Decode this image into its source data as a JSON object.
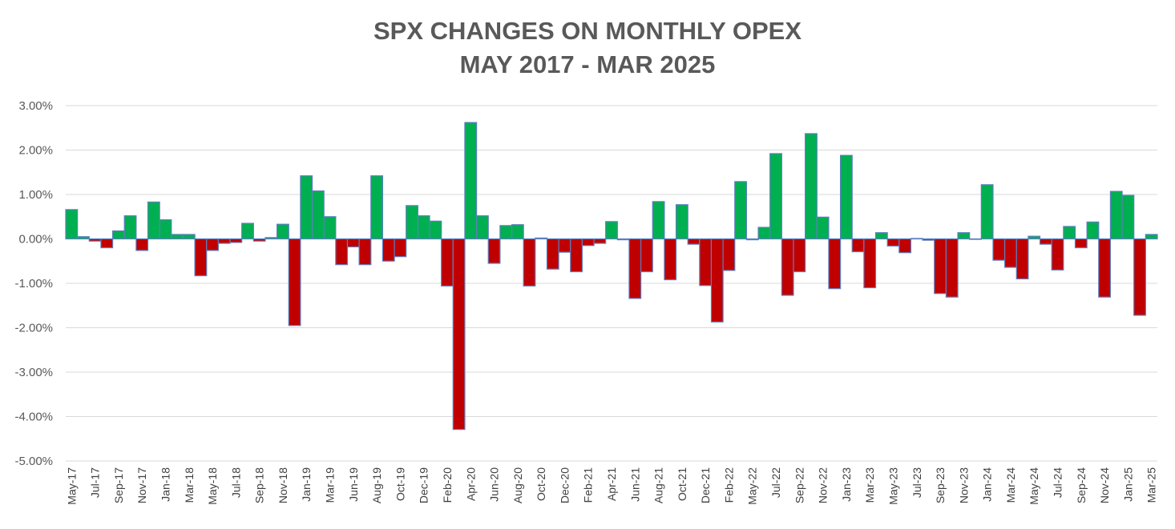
{
  "chart_data": {
    "type": "bar",
    "title_lines": [
      "SPX CHANGES ON MONTHLY OPEX",
      "MAY 2017 - MAR 2025"
    ],
    "xlabel": "",
    "ylabel": "",
    "ylim": [
      -5,
      3
    ],
    "y_ticks": [
      3,
      2,
      1,
      0,
      -1,
      -2,
      -3,
      -4,
      -5
    ],
    "y_tick_labels": [
      "3.00%",
      "2.00%",
      "1.00%",
      "0.00%",
      "-1.00%",
      "-2.00%",
      "-3.00%",
      "-4.00%",
      "-5.00%"
    ],
    "grid": true,
    "legend": "none",
    "colors": {
      "positive": "#00B050",
      "negative": "#C00000",
      "bar_border": "#5B7FBF",
      "grid": "#D9D9D9",
      "axis_text": "#595959",
      "title": "#595959"
    },
    "categories": [
      "May-17",
      "Jun-17",
      "Jul-17",
      "Aug-17",
      "Sep-17",
      "Oct-17",
      "Nov-17",
      "Dec-17",
      "Jan-18",
      "Feb-18",
      "Mar-18",
      "Apr-18",
      "May-18",
      "Jun-18",
      "Jul-18",
      "Aug-18",
      "Sep-18",
      "Oct-18",
      "Nov-18",
      "Dec-18",
      "Jan-19",
      "Feb-19",
      "Mar-19",
      "Apr-19",
      "Jun-19",
      "Jul-19",
      "Aug-19",
      "Sep-19",
      "Oct-19",
      "Nov-19",
      "Dec-19",
      "Jan-20",
      "Feb-20",
      "Mar-20",
      "Apr-20",
      "May-20",
      "Jun-20",
      "Jul-20",
      "Aug-20",
      "Sep-20",
      "Oct-20",
      "Nov-20",
      "Dec-20",
      "Jan-21",
      "Feb-21",
      "Mar-21",
      "Apr-21",
      "May-21",
      "Jun-21",
      "Jul-21",
      "Aug-21",
      "Sep-21",
      "Oct-21",
      "Nov-21",
      "Dec-21",
      "Jan-22",
      "Feb-22",
      "Mar-22",
      "May-22",
      "Jun-22",
      "Jul-22",
      "Aug-22",
      "Sep-22",
      "Oct-22",
      "Nov-22",
      "Dec-22",
      "Jan-23",
      "Feb-23",
      "Mar-23",
      "Apr-23",
      "May-23",
      "Jun-23",
      "Jul-23",
      "Aug-23",
      "Sep-23",
      "Oct-23",
      "Nov-23",
      "Dec-23",
      "Jan-24",
      "Feb-24",
      "Mar-24",
      "Apr-24",
      "May-24",
      "Jun-24",
      "Jul-24",
      "Aug-24",
      "Sep-24",
      "Oct-24",
      "Nov-24",
      "Dec-24",
      "Jan-25",
      "Feb-25",
      "Mar-25"
    ],
    "tick_labels": [
      "May-17",
      "Jul-17",
      "Sep-17",
      "Nov-17",
      "Jan-18",
      "Mar-18",
      "May-18",
      "Jul-18",
      "Sep-18",
      "Nov-18",
      "Jan-19",
      "Mar-19",
      "Jun-19",
      "Aug-19",
      "Oct-19",
      "Dec-19",
      "Feb-20",
      "Apr-20",
      "Jun-20",
      "Aug-20",
      "Oct-20",
      "Dec-20",
      "Feb-21",
      "Apr-21",
      "Jun-21",
      "Aug-21",
      "Oct-21",
      "Dec-21",
      "Feb-22",
      "May-22",
      "Jul-22",
      "Sep-22",
      "Nov-22",
      "Jan-23",
      "Mar-23",
      "May-23",
      "Jul-23",
      "Sep-23",
      "Nov-23",
      "Jan-24",
      "Mar-24",
      "May-24",
      "Jul-24",
      "Sep-24",
      "Nov-24",
      "Jan-25",
      "Mar-25"
    ],
    "values": [
      0.66,
      0.05,
      -0.05,
      -0.2,
      0.18,
      0.52,
      -0.26,
      0.83,
      0.43,
      0.1,
      0.1,
      -0.83,
      -0.26,
      -0.1,
      -0.08,
      0.35,
      -0.05,
      0.03,
      0.33,
      -1.95,
      1.42,
      1.08,
      0.5,
      -0.58,
      -0.18,
      -0.58,
      1.42,
      -0.5,
      -0.4,
      0.75,
      0.52,
      0.4,
      -1.06,
      -4.29,
      2.62,
      0.52,
      -0.55,
      0.3,
      0.32,
      -1.06,
      0.02,
      -0.68,
      -0.3,
      -0.74,
      -0.15,
      -0.1,
      0.39,
      -0.02,
      -1.34,
      -0.74,
      0.84,
      -0.92,
      0.77,
      -0.12,
      -1.05,
      -1.87,
      -0.71,
      1.29,
      -0.02,
      0.26,
      1.92,
      -1.27,
      -0.74,
      2.37,
      0.49,
      -1.12,
      1.88,
      -0.29,
      -1.1,
      0.14,
      -0.16,
      -0.31,
      0.01,
      -0.03,
      -1.23,
      -1.31,
      0.14,
      0.0,
      1.22,
      -0.48,
      -0.64,
      -0.9,
      0.06,
      -0.12,
      -0.7,
      0.28,
      -0.2,
      0.38,
      -1.31,
      1.07,
      0.98,
      -1.72,
      0.1
    ]
  }
}
